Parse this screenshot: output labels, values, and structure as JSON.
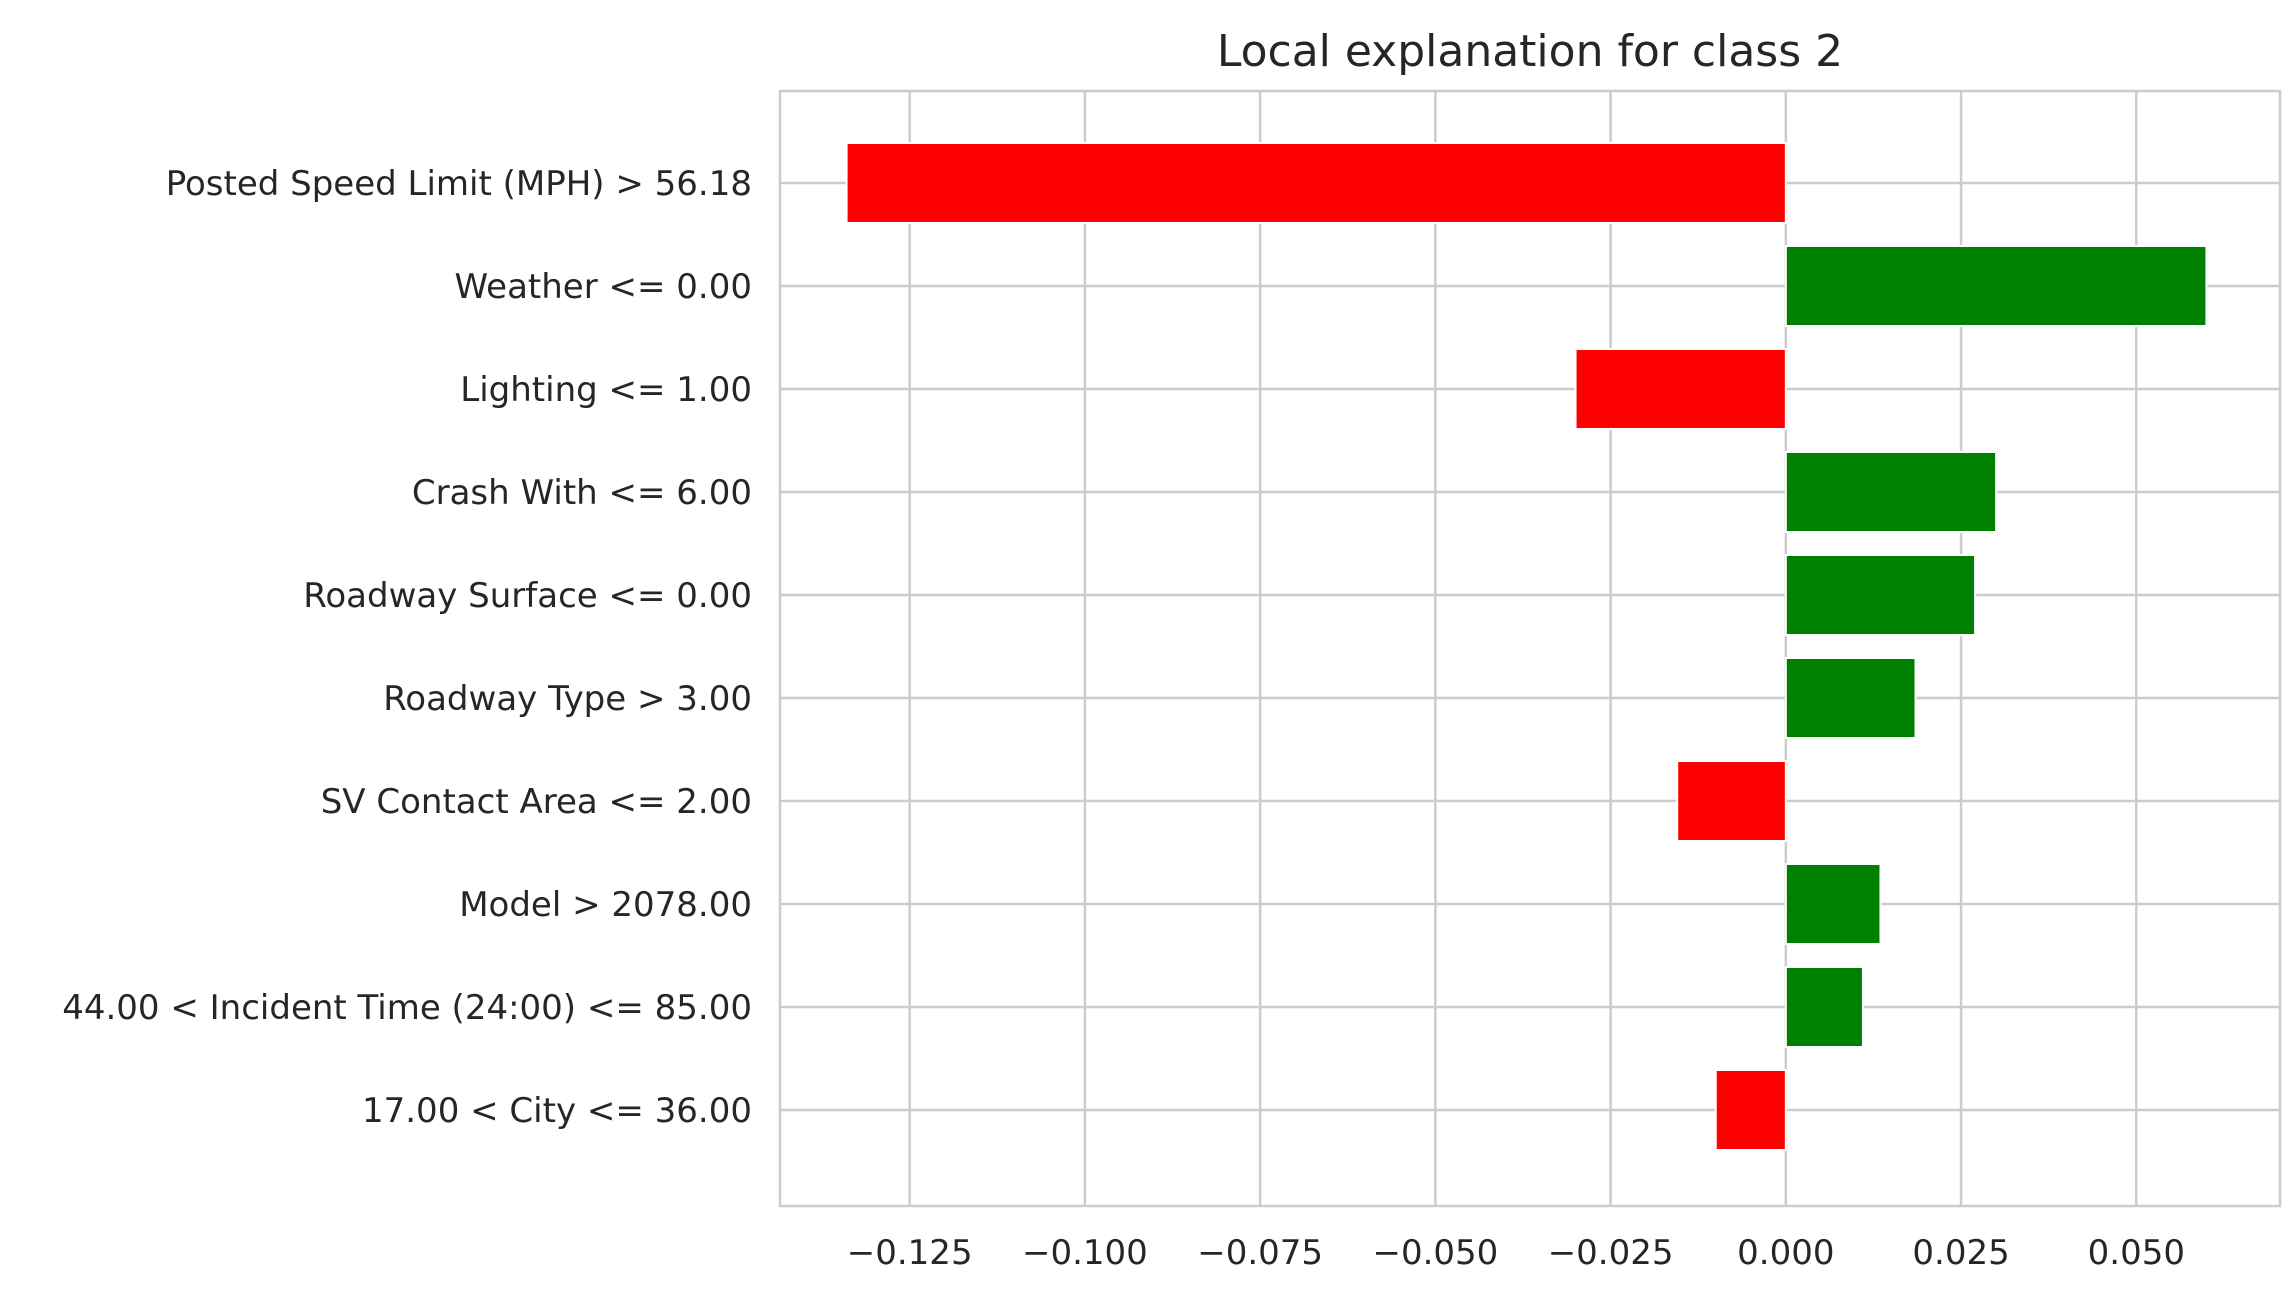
{
  "chart_data": {
    "type": "bar",
    "orientation": "horizontal",
    "title": "Local explanation for class 2",
    "xlabel": "",
    "ylabel": "",
    "xlim": [
      -0.1435,
      0.0705
    ],
    "grid": true,
    "colors": {
      "positive": "#008000",
      "negative": "#ff0000",
      "grid": "#cccccc",
      "text": "#262626"
    },
    "categories": [
      "Posted Speed Limit (MPH) > 56.18",
      "Weather <= 0.00",
      "Lighting <= 1.00",
      "Crash With <= 6.00",
      "Roadway Surface <= 0.00",
      "Roadway Type > 3.00",
      "SV Contact Area <= 2.00",
      "Model > 2078.00",
      "44.00 < Incident Time (24:00) <= 85.00",
      "17.00 < City <= 36.00"
    ],
    "values": [
      -0.134,
      0.06,
      -0.03,
      0.03,
      0.027,
      0.0185,
      -0.0155,
      0.0135,
      0.011,
      -0.01
    ],
    "xticks": [
      -0.125,
      -0.1,
      -0.075,
      -0.05,
      -0.025,
      0.0,
      0.025,
      0.05
    ],
    "xtick_labels": [
      "−0.125",
      "−0.100",
      "−0.075",
      "−0.050",
      "−0.025",
      "0.000",
      "0.025",
      "0.050"
    ]
  }
}
